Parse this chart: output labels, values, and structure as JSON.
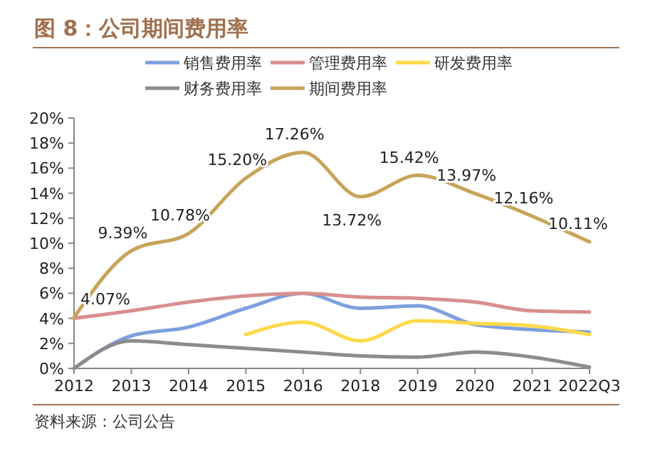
{
  "chart_data": {
    "type": "line",
    "title": "图 8：公司期间费用率",
    "annotations": [
      "资料来源：公司公告"
    ],
    "categories": [
      "2012",
      "2013",
      "2014",
      "2015",
      "2016",
      "2018",
      "2019",
      "2020",
      "2021",
      "2022Q3"
    ],
    "ylim": [
      0,
      20
    ],
    "yticks": [
      {
        "value": 0,
        "label": "0%"
      },
      {
        "value": 2,
        "label": "2%"
      },
      {
        "value": 4,
        "label": "4%"
      },
      {
        "value": 6,
        "label": "6%"
      },
      {
        "value": 8,
        "label": "8%"
      },
      {
        "value": 10,
        "label": "10%"
      },
      {
        "value": 12,
        "label": "12%"
      },
      {
        "value": 14,
        "label": "14%"
      },
      {
        "value": 16,
        "label": "16%"
      },
      {
        "value": 18,
        "label": "18%"
      },
      {
        "value": 20,
        "label": "20%"
      }
    ],
    "legend": "top",
    "grid": false,
    "marker": "none",
    "series": [
      {
        "name": "销售费用率",
        "color": "#7f9fde",
        "values": [
          0,
          2.6,
          3.3,
          4.8,
          6.0,
          4.8,
          5.0,
          3.5,
          3.1,
          2.9
        ]
      },
      {
        "name": "管理费用率",
        "color": "#d98f8f",
        "values": [
          4.0,
          4.6,
          5.3,
          5.8,
          6.0,
          5.7,
          5.6,
          5.3,
          4.6,
          4.5
        ]
      },
      {
        "name": "研发费用率",
        "color": "#ffd94a",
        "values": [
          null,
          null,
          null,
          2.7,
          3.7,
          2.2,
          3.8,
          3.6,
          3.4,
          2.7
        ]
      },
      {
        "name": "财务费用率",
        "color": "#8c8c8c",
        "values": [
          0,
          2.2,
          1.9,
          1.6,
          1.3,
          1.0,
          0.9,
          1.3,
          0.9,
          0.1
        ]
      },
      {
        "name": "期间费用率",
        "color": "#c8a45a",
        "values": [
          4.07,
          9.39,
          10.78,
          15.2,
          17.26,
          13.72,
          15.42,
          13.97,
          12.16,
          10.11
        ],
        "value_labels": [
          "4.07%",
          "9.39%",
          "10.78%",
          "15.20%",
          "17.26%",
          "13.72%",
          "15.42%",
          "13.97%",
          "12.16%",
          "10.11%"
        ]
      }
    ]
  }
}
